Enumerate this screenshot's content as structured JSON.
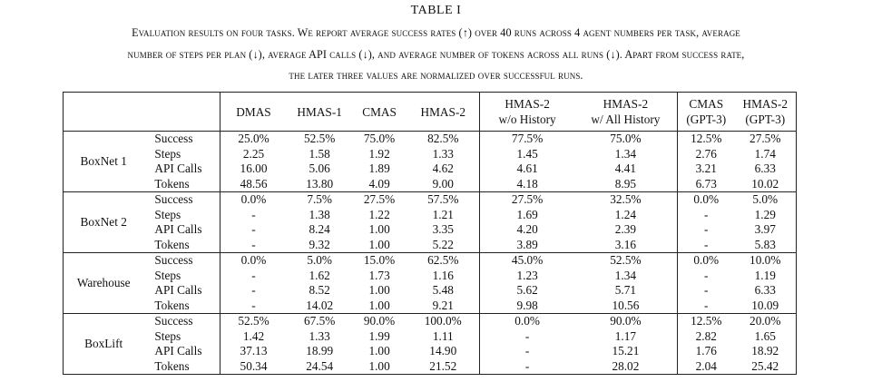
{
  "table_label": "TABLE I",
  "caption_lines": [
    "Evaluation results on four tasks. We report average success rates (↑) over 40 runs across 4 agent numbers per task, average",
    "number of steps per plan (↓), average API calls (↓), and average number of tokens across all runs (↓). Apart from success rate,",
    "the later three values are normalized over successful runs."
  ],
  "columns": [
    [
      "DMAS"
    ],
    [
      "HMAS-1"
    ],
    [
      "CMAS"
    ],
    [
      "HMAS-2"
    ],
    [
      "HMAS-2",
      "w/o History"
    ],
    [
      "HMAS-2",
      "w/ All History"
    ],
    [
      "CMAS",
      "(GPT-3)"
    ],
    [
      "HMAS-2",
      "(GPT-3)"
    ]
  ],
  "groups": [
    {
      "task": "BoxNet 1",
      "rows": [
        {
          "metric": "Success",
          "values": [
            "25.0%",
            "52.5%",
            "75.0%",
            "82.5%",
            "77.5%",
            "75.0%",
            "12.5%",
            "27.5%"
          ],
          "bold": [
            3
          ]
        },
        {
          "metric": "Steps",
          "values": [
            "2.25",
            "1.58",
            "1.92",
            "1.33",
            "1.45",
            "1.34",
            "2.76",
            "1.74"
          ],
          "bold": [
            3
          ]
        },
        {
          "metric": "API Calls",
          "values": [
            "16.00",
            "5.06",
            "1.89",
            "4.62",
            "4.61",
            "4.41",
            "3.21",
            "6.33"
          ],
          "bold": [
            2
          ]
        },
        {
          "metric": "Tokens",
          "values": [
            "48.56",
            "13.80",
            "4.09",
            "9.00",
            "4.18",
            "8.95",
            "6.73",
            "10.02"
          ],
          "bold": [
            2
          ]
        }
      ]
    },
    {
      "task": "BoxNet 2",
      "rows": [
        {
          "metric": "Success",
          "values": [
            "0.0%",
            "7.5%",
            "27.5%",
            "57.5%",
            "27.5%",
            "32.5%",
            "0.0%",
            "5.0%"
          ],
          "bold": [
            3
          ]
        },
        {
          "metric": "Steps",
          "values": [
            "-",
            "1.38",
            "1.22",
            "1.21",
            "1.69",
            "1.24",
            "-",
            "1.29"
          ],
          "bold": [
            3
          ]
        },
        {
          "metric": "API Calls",
          "values": [
            "-",
            "8.24",
            "1.00",
            "3.35",
            "4.20",
            "2.39",
            "-",
            "3.97"
          ],
          "bold": [
            2
          ]
        },
        {
          "metric": "Tokens",
          "values": [
            "-",
            "9.32",
            "1.00",
            "5.22",
            "3.89",
            "3.16",
            "-",
            "5.83"
          ],
          "bold": [
            2
          ]
        }
      ]
    },
    {
      "task": "Warehouse",
      "rows": [
        {
          "metric": "Success",
          "values": [
            "0.0%",
            "5.0%",
            "15.0%",
            "62.5%",
            "45.0%",
            "52.5%",
            "0.0%",
            "10.0%"
          ],
          "bold": [
            3
          ]
        },
        {
          "metric": "Steps",
          "values": [
            "-",
            "1.62",
            "1.73",
            "1.16",
            "1.23",
            "1.34",
            "-",
            "1.19"
          ],
          "bold": [
            3
          ]
        },
        {
          "metric": "API Calls",
          "values": [
            "-",
            "8.52",
            "1.00",
            "5.48",
            "5.62",
            "5.71",
            "-",
            "6.33"
          ],
          "bold": [
            2
          ]
        },
        {
          "metric": "Tokens",
          "values": [
            "-",
            "14.02",
            "1.00",
            "9.21",
            "9.98",
            "10.56",
            "-",
            "10.09"
          ],
          "bold": [
            2
          ]
        }
      ]
    },
    {
      "task": "BoxLift",
      "rows": [
        {
          "metric": "Success",
          "values": [
            "52.5%",
            "67.5%",
            "90.0%",
            "100.0%",
            "0.0%",
            "90.0%",
            "12.5%",
            "20.0%"
          ],
          "bold": [
            3
          ]
        },
        {
          "metric": "Steps",
          "values": [
            "1.42",
            "1.33",
            "1.99",
            "1.11",
            "-",
            "1.17",
            "2.82",
            "1.65"
          ],
          "bold": [
            3
          ]
        },
        {
          "metric": "API Calls",
          "values": [
            "37.13",
            "18.99",
            "1.00",
            "14.90",
            "-",
            "15.21",
            "1.76",
            "18.92"
          ],
          "bold": [
            2
          ]
        },
        {
          "metric": "Tokens",
          "values": [
            "50.34",
            "24.54",
            "1.00",
            "21.52",
            "-",
            "28.02",
            "2.04",
            "25.42"
          ],
          "bold": [
            2
          ]
        }
      ]
    }
  ]
}
